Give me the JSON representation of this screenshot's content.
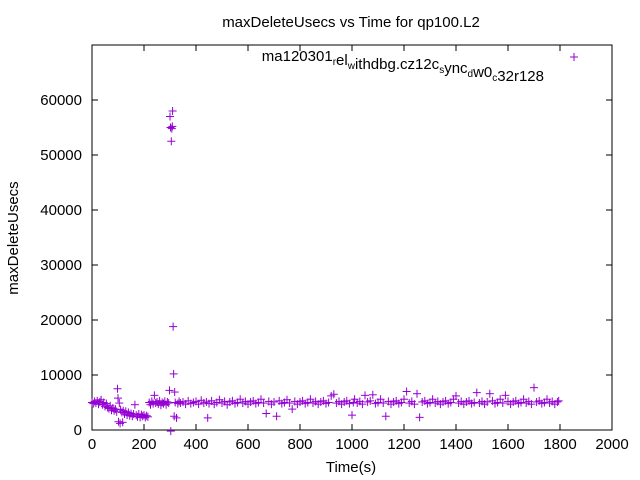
{
  "chart_data": {
    "type": "scatter",
    "title": "maxDeleteUsecs vs Time for qp100.L2",
    "xlabel": "Time(s)",
    "ylabel": "maxDeleteUsecs",
    "xlim": [
      0,
      2000
    ],
    "ylim": [
      0,
      70000
    ],
    "xticks": [
      0,
      200,
      400,
      600,
      800,
      1000,
      1200,
      1400,
      1600,
      1800,
      2000
    ],
    "yticks": [
      0,
      10000,
      20000,
      30000,
      40000,
      50000,
      60000
    ],
    "grid": false,
    "legend_position": "top-right",
    "marker": "+",
    "color": "#9400d3",
    "series": [
      {
        "name": "ma120301_rel_withdbg.cz12c_sync_dw0_c32r128",
        "legend_parts": [
          {
            "text": "ma120301",
            "sub": false
          },
          {
            "text": "r",
            "sub": true
          },
          {
            "text": "el",
            "sub": false
          },
          {
            "text": "w",
            "sub": true
          },
          {
            "text": "ithdbg.cz12c",
            "sub": false
          },
          {
            "text": "s",
            "sub": true
          },
          {
            "text": "ync",
            "sub": false
          },
          {
            "text": "d",
            "sub": true
          },
          {
            "text": "w0",
            "sub": false
          },
          {
            "text": "c",
            "sub": true
          },
          {
            "text": "32r128",
            "sub": false
          }
        ],
        "points": [
          [
            0,
            5000
          ],
          [
            5,
            4800
          ],
          [
            10,
            5200
          ],
          [
            15,
            4900
          ],
          [
            20,
            5300
          ],
          [
            25,
            4700
          ],
          [
            30,
            5100
          ],
          [
            35,
            5500
          ],
          [
            40,
            4600
          ],
          [
            45,
            5000
          ],
          [
            50,
            4300
          ],
          [
            55,
            4800
          ],
          [
            60,
            4100
          ],
          [
            65,
            3900
          ],
          [
            70,
            4400
          ],
          [
            75,
            3600
          ],
          [
            80,
            4000
          ],
          [
            85,
            3500
          ],
          [
            90,
            3800
          ],
          [
            95,
            3300
          ],
          [
            98,
            7500
          ],
          [
            100,
            5800
          ],
          [
            102,
            1500
          ],
          [
            105,
            4900
          ],
          [
            108,
            1200
          ],
          [
            110,
            3700
          ],
          [
            115,
            3200
          ],
          [
            118,
            1400
          ],
          [
            120,
            3500
          ],
          [
            125,
            2900
          ],
          [
            130,
            3400
          ],
          [
            135,
            2700
          ],
          [
            140,
            3200
          ],
          [
            145,
            2600
          ],
          [
            150,
            3000
          ],
          [
            155,
            2500
          ],
          [
            160,
            2900
          ],
          [
            165,
            4600
          ],
          [
            170,
            2700
          ],
          [
            175,
            2400
          ],
          [
            180,
            2900
          ],
          [
            185,
            2300
          ],
          [
            190,
            2800
          ],
          [
            195,
            2500
          ],
          [
            200,
            2700
          ],
          [
            205,
            2300
          ],
          [
            210,
            2600
          ],
          [
            215,
            2400
          ],
          [
            220,
            5000
          ],
          [
            225,
            4600
          ],
          [
            230,
            5200
          ],
          [
            235,
            4800
          ],
          [
            240,
            6300
          ],
          [
            245,
            4900
          ],
          [
            250,
            5100
          ],
          [
            255,
            4700
          ],
          [
            260,
            5300
          ],
          [
            265,
            4500
          ],
          [
            270,
            5000
          ],
          [
            275,
            4800
          ],
          [
            280,
            5200
          ],
          [
            285,
            4600
          ],
          [
            290,
            5100
          ],
          [
            295,
            4900
          ],
          [
            298,
            7200
          ],
          [
            300,
            57000
          ],
          [
            302,
            55000
          ],
          [
            303,
            -200
          ],
          [
            305,
            52500
          ],
          [
            307,
            54800
          ],
          [
            309,
            55200
          ],
          [
            310,
            58000
          ],
          [
            312,
            18800
          ],
          [
            314,
            10200
          ],
          [
            316,
            2500
          ],
          [
            318,
            6900
          ],
          [
            320,
            5000
          ],
          [
            325,
            2200
          ],
          [
            330,
            4800
          ],
          [
            335,
            5200
          ],
          [
            340,
            4900
          ],
          [
            350,
            5100
          ],
          [
            360,
            4700
          ],
          [
            370,
            5300
          ],
          [
            380,
            4800
          ],
          [
            390,
            5000
          ],
          [
            400,
            5200
          ],
          [
            410,
            4700
          ],
          [
            420,
            5400
          ],
          [
            430,
            4900
          ],
          [
            440,
            5100
          ],
          [
            445,
            2200
          ],
          [
            450,
            4800
          ],
          [
            460,
            5300
          ],
          [
            470,
            4700
          ],
          [
            480,
            5000
          ],
          [
            490,
            5500
          ],
          [
            500,
            4900
          ],
          [
            510,
            5200
          ],
          [
            520,
            4600
          ],
          [
            530,
            5100
          ],
          [
            540,
            5300
          ],
          [
            550,
            4800
          ],
          [
            560,
            5000
          ],
          [
            570,
            5600
          ],
          [
            580,
            4900
          ],
          [
            590,
            5200
          ],
          [
            600,
            4700
          ],
          [
            610,
            5100
          ],
          [
            620,
            5300
          ],
          [
            630,
            4800
          ],
          [
            640,
            5000
          ],
          [
            650,
            5600
          ],
          [
            660,
            4900
          ],
          [
            670,
            3000
          ],
          [
            680,
            5200
          ],
          [
            690,
            4700
          ],
          [
            700,
            5100
          ],
          [
            710,
            2500
          ],
          [
            720,
            5300
          ],
          [
            730,
            4800
          ],
          [
            740,
            5000
          ],
          [
            750,
            5500
          ],
          [
            760,
            4900
          ],
          [
            770,
            3800
          ],
          [
            780,
            5200
          ],
          [
            790,
            4700
          ],
          [
            800,
            5100
          ],
          [
            810,
            5300
          ],
          [
            820,
            4800
          ],
          [
            830,
            5000
          ],
          [
            840,
            5600
          ],
          [
            850,
            4900
          ],
          [
            860,
            5200
          ],
          [
            870,
            4700
          ],
          [
            880,
            5100
          ],
          [
            890,
            5300
          ],
          [
            900,
            4800
          ],
          [
            910,
            5000
          ],
          [
            920,
            6200
          ],
          [
            930,
            6500
          ],
          [
            940,
            4900
          ],
          [
            950,
            5200
          ],
          [
            960,
            4700
          ],
          [
            970,
            5100
          ],
          [
            980,
            5300
          ],
          [
            990,
            4800
          ],
          [
            1000,
            2700
          ],
          [
            1005,
            5000
          ],
          [
            1010,
            5600
          ],
          [
            1020,
            4900
          ],
          [
            1030,
            5200
          ],
          [
            1040,
            4700
          ],
          [
            1050,
            6300
          ],
          [
            1060,
            5100
          ],
          [
            1070,
            5300
          ],
          [
            1080,
            6400
          ],
          [
            1090,
            4800
          ],
          [
            1100,
            5000
          ],
          [
            1110,
            5600
          ],
          [
            1120,
            4900
          ],
          [
            1130,
            2500
          ],
          [
            1140,
            5200
          ],
          [
            1150,
            4700
          ],
          [
            1160,
            5100
          ],
          [
            1170,
            5300
          ],
          [
            1180,
            4800
          ],
          [
            1190,
            5000
          ],
          [
            1200,
            5600
          ],
          [
            1210,
            7000
          ],
          [
            1220,
            4900
          ],
          [
            1230,
            5200
          ],
          [
            1240,
            4700
          ],
          [
            1250,
            6600
          ],
          [
            1260,
            2300
          ],
          [
            1270,
            5100
          ],
          [
            1280,
            5300
          ],
          [
            1290,
            4800
          ],
          [
            1300,
            5000
          ],
          [
            1310,
            5600
          ],
          [
            1320,
            4900
          ],
          [
            1330,
            5200
          ],
          [
            1340,
            4700
          ],
          [
            1350,
            5100
          ],
          [
            1360,
            5300
          ],
          [
            1370,
            4800
          ],
          [
            1380,
            5000
          ],
          [
            1390,
            5600
          ],
          [
            1400,
            6200
          ],
          [
            1410,
            4900
          ],
          [
            1420,
            5200
          ],
          [
            1430,
            4700
          ],
          [
            1440,
            5100
          ],
          [
            1450,
            5300
          ],
          [
            1460,
            4800
          ],
          [
            1470,
            5000
          ],
          [
            1480,
            6800
          ],
          [
            1490,
            4900
          ],
          [
            1500,
            5200
          ],
          [
            1510,
            4700
          ],
          [
            1520,
            5100
          ],
          [
            1530,
            6600
          ],
          [
            1540,
            5300
          ],
          [
            1550,
            4800
          ],
          [
            1560,
            5000
          ],
          [
            1570,
            5600
          ],
          [
            1580,
            4900
          ],
          [
            1590,
            6300
          ],
          [
            1600,
            5200
          ],
          [
            1610,
            4700
          ],
          [
            1620,
            5100
          ],
          [
            1630,
            5300
          ],
          [
            1640,
            4800
          ],
          [
            1650,
            5000
          ],
          [
            1660,
            5600
          ],
          [
            1670,
            4900
          ],
          [
            1680,
            5200
          ],
          [
            1690,
            4700
          ],
          [
            1700,
            7700
          ],
          [
            1710,
            5100
          ],
          [
            1720,
            5300
          ],
          [
            1730,
            4800
          ],
          [
            1740,
            5000
          ],
          [
            1750,
            5600
          ],
          [
            1760,
            4900
          ],
          [
            1770,
            5200
          ],
          [
            1780,
            4700
          ],
          [
            1790,
            5100
          ],
          [
            1795,
            5300
          ]
        ]
      }
    ]
  }
}
